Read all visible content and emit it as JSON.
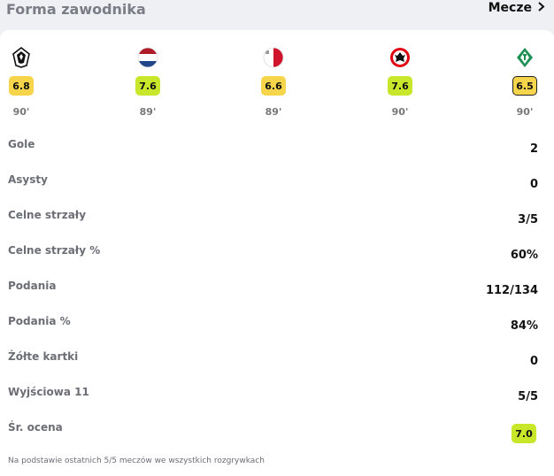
{
  "header": {
    "title": "Forma zawodnika",
    "matches_label": "Mecze"
  },
  "matches": [
    {
      "crest_icon": "gladbach-crest-icon",
      "rating": "6.8",
      "rating_color": "#f6d54a",
      "minutes": "90'"
    },
    {
      "crest_icon": "netherlands-flag-icon",
      "rating": "7.6",
      "rating_color": "#c8e62a",
      "minutes": "89'"
    },
    {
      "crest_icon": "malta-flag-icon",
      "rating": "6.6",
      "rating_color": "#f6d54a",
      "minutes": "89'"
    },
    {
      "crest_icon": "eintracht-crest-icon",
      "rating": "7.6",
      "rating_color": "#c8e62a",
      "minutes": "90'"
    },
    {
      "crest_icon": "werder-crest-icon",
      "rating": "6.5",
      "rating_color": "#f6d54a",
      "minutes": "90'"
    }
  ],
  "stats": [
    {
      "label": "Gole",
      "value": "2"
    },
    {
      "label": "Asysty",
      "value": "0"
    },
    {
      "label": "Celne strzały",
      "value": "3/5"
    },
    {
      "label": "Celne strzały %",
      "value": "60%"
    },
    {
      "label": "Podania",
      "value": "112/134"
    },
    {
      "label": "Podania %",
      "value": "84%"
    },
    {
      "label": "Żółte kartki",
      "value": "0"
    },
    {
      "label": "Wyjściowa 11",
      "value": "5/5"
    }
  ],
  "average": {
    "label": "Śr. ocena",
    "value": "7.0",
    "color": "#c8e62a"
  },
  "footnote": "Na podstawie ostatnich 5/5 meczów we wszystkich rozgrywkach"
}
